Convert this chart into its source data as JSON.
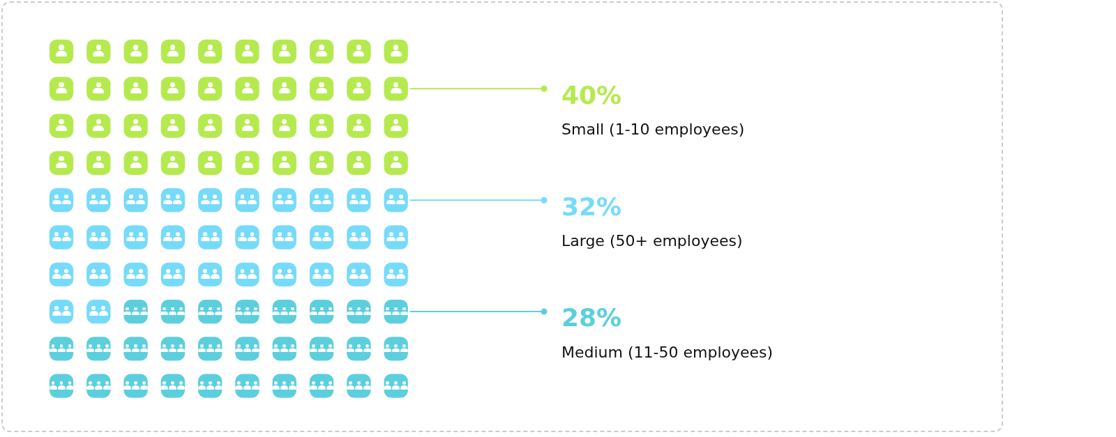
{
  "chart_data": {
    "type": "other",
    "categories": [
      "Small (1-10 employees)",
      "Large (50+ employees)",
      "Medium (11-50 employees)"
    ],
    "values": [
      40,
      32,
      28
    ],
    "colors": [
      "#b5ea4f",
      "#76dbfa",
      "#5ccfde"
    ],
    "value_labels": [
      "40%",
      "32%",
      "28%"
    ]
  }
}
